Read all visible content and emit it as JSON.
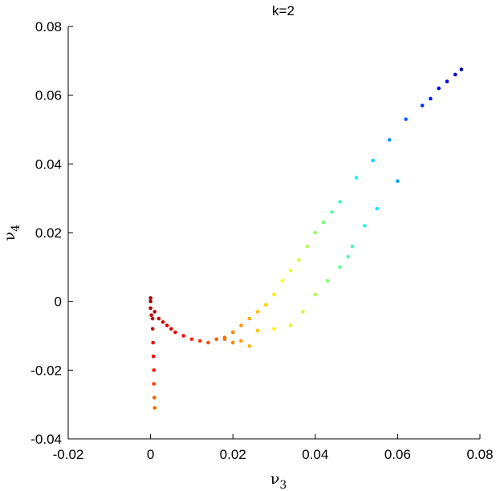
{
  "chart_data": {
    "type": "scatter",
    "title": "k=2",
    "xlabel": "ν",
    "xlabel_sub": "3",
    "ylabel": "ν",
    "ylabel_sub": "4",
    "xlim": [
      -0.02,
      0.08
    ],
    "ylim": [
      -0.04,
      0.08
    ],
    "xticks": [
      -0.02,
      0,
      0.02,
      0.04,
      0.06,
      0.08
    ],
    "xtick_labels": [
      "-0.02",
      "0",
      "0.02",
      "0.04",
      "0.06",
      "0.08"
    ],
    "yticks": [
      -0.04,
      -0.02,
      0,
      0.02,
      0.04,
      0.06,
      0.08
    ],
    "ytick_labels": [
      "-0.04",
      "-0.02",
      "0",
      "0.02",
      "0.04",
      "0.06",
      "0.08"
    ],
    "grid": false,
    "colormap": "jet",
    "color_order": "red at origin to dark blue at far end",
    "marker_color_range": [
      "#00008f",
      "#800000"
    ],
    "points": [
      [
        0.0,
        0.001
      ],
      [
        0.0,
        0.0
      ],
      [
        0.0,
        -0.002
      ],
      [
        0.0002,
        -0.004
      ],
      [
        0.0005,
        -0.005
      ],
      [
        0.0005,
        -0.008
      ],
      [
        0.0006,
        -0.012
      ],
      [
        0.0007,
        -0.016
      ],
      [
        0.0008,
        -0.02
      ],
      [
        0.0008,
        -0.024
      ],
      [
        0.0009,
        -0.028
      ],
      [
        0.001,
        -0.031
      ],
      [
        0.001,
        -0.003
      ],
      [
        0.002,
        -0.005
      ],
      [
        0.003,
        -0.006
      ],
      [
        0.004,
        -0.007
      ],
      [
        0.005,
        -0.008
      ],
      [
        0.006,
        -0.009
      ],
      [
        0.008,
        -0.01
      ],
      [
        0.01,
        -0.011
      ],
      [
        0.012,
        -0.0115
      ],
      [
        0.014,
        -0.012
      ],
      [
        0.016,
        -0.011
      ],
      [
        0.018,
        -0.0105
      ],
      [
        0.02,
        -0.009
      ],
      [
        0.022,
        -0.007
      ],
      [
        0.024,
        -0.005
      ],
      [
        0.026,
        -0.003
      ],
      [
        0.028,
        -0.001
      ],
      [
        0.03,
        0.002
      ],
      [
        0.032,
        0.006
      ],
      [
        0.034,
        0.009
      ],
      [
        0.036,
        0.012
      ],
      [
        0.038,
        0.016
      ],
      [
        0.04,
        0.02
      ],
      [
        0.042,
        0.023
      ],
      [
        0.044,
        0.026
      ],
      [
        0.046,
        0.029
      ],
      [
        0.05,
        0.036
      ],
      [
        0.054,
        0.041
      ],
      [
        0.058,
        0.047
      ],
      [
        0.062,
        0.053
      ],
      [
        0.066,
        0.057
      ],
      [
        0.068,
        0.059
      ],
      [
        0.07,
        0.062
      ],
      [
        0.072,
        0.064
      ],
      [
        0.074,
        0.066
      ],
      [
        0.0755,
        0.0675
      ],
      [
        0.018,
        -0.011
      ],
      [
        0.02,
        -0.012
      ],
      [
        0.022,
        -0.0115
      ],
      [
        0.024,
        -0.013
      ],
      [
        0.026,
        -0.0085
      ],
      [
        0.03,
        -0.008
      ],
      [
        0.034,
        -0.007
      ],
      [
        0.037,
        -0.003
      ],
      [
        0.04,
        0.002
      ],
      [
        0.043,
        0.006
      ],
      [
        0.046,
        0.01
      ],
      [
        0.048,
        0.013
      ],
      [
        0.049,
        0.016
      ],
      [
        0.052,
        0.022
      ],
      [
        0.055,
        0.027
      ],
      [
        0.06,
        0.035
      ]
    ]
  }
}
